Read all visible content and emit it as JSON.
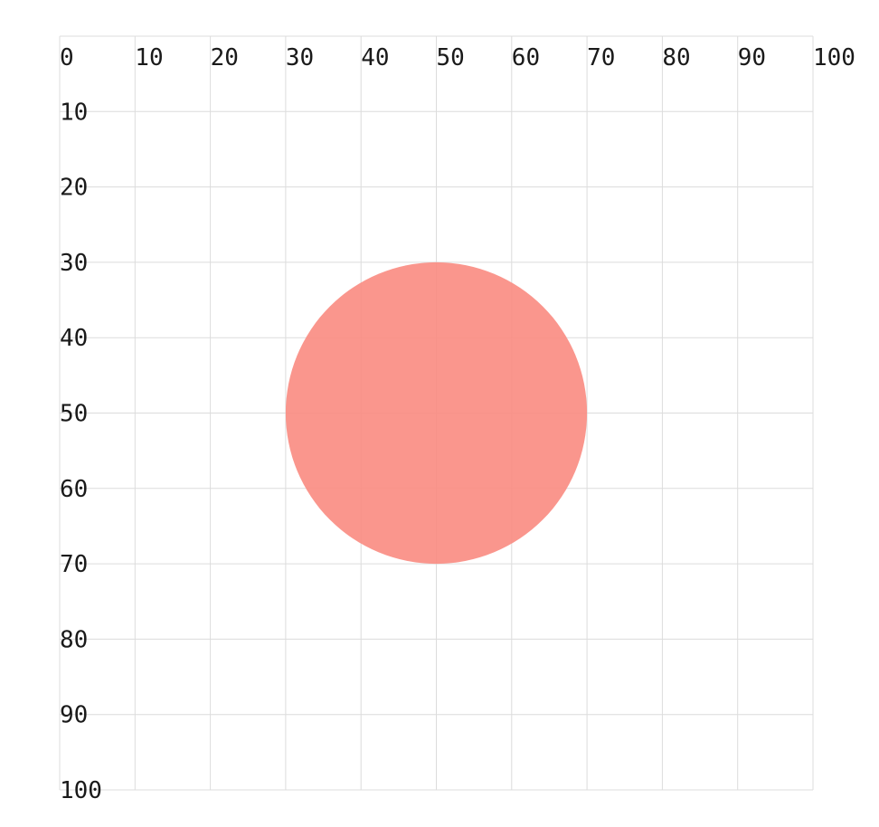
{
  "coordinate_grid": {
    "x_range": [
      0,
      100
    ],
    "y_range": [
      0,
      100
    ],
    "step": 10,
    "x_tick_labels": [
      "0",
      "10",
      "20",
      "30",
      "40",
      "50",
      "60",
      "70",
      "80",
      "90",
      "100"
    ],
    "y_tick_labels": [
      "10",
      "20",
      "30",
      "40",
      "50",
      "60",
      "70",
      "80",
      "90",
      "100"
    ],
    "grid_color": "#dcdcdc"
  },
  "shapes": [
    {
      "shape": "circle",
      "center": [
        50,
        50
      ],
      "radius": 20,
      "fill": "#f98b81",
      "opacity": 0.9
    }
  ]
}
